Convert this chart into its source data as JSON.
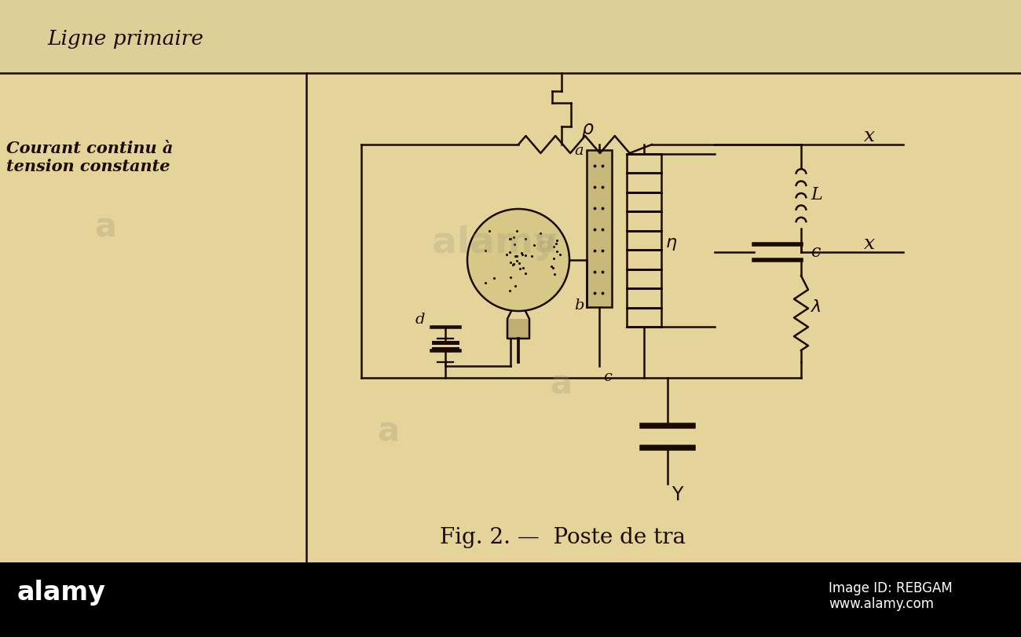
{
  "bg_color": "#e8d9a8",
  "bg_top_color": "#ddd0a0",
  "line_color": "#1a0a00",
  "text_color": "#1a0a00",
  "title": "Ligne primaire",
  "label1": "Courant continu à",
  "label2": "tension constante",
  "fig_caption": "Fig. 2. —  Poste de tra",
  "alamy_text": "alamy",
  "alamy_id": "Image ID: REBGAM",
  "alamy_url": "www.alamy.com",
  "lw": 1.8
}
